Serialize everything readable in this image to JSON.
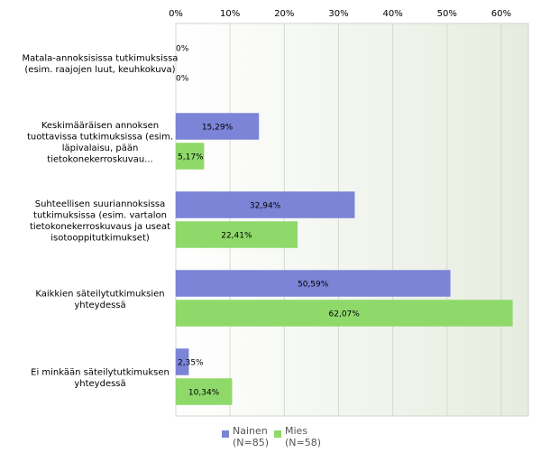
{
  "chart_data": {
    "type": "bar",
    "orientation": "horizontal",
    "categories": [
      [
        "Matala-annoksisissa tutkimuksissa",
        "(esim. raajojen luut, keuhkokuva)"
      ],
      [
        "Keskimääräisen annoksen",
        "tuottavissa tutkimuksissa (esim.",
        "läpivalaisu, pään",
        "tietokonekerroskuvau..."
      ],
      [
        "Suhteellisen suuriannoksissa",
        "tutkimuksissa (esim. vartalon",
        "tietokonekerroskuvaus ja useat",
        "isotooppitutkimukset)"
      ],
      [
        "Kaikkien säteilytutkimuksien",
        "yhteydessä"
      ],
      [
        "Ei minkään säteilytutkimuksen",
        "yhteydessä"
      ]
    ],
    "series": [
      {
        "name": "Nainen",
        "subtitle": "(N=85)",
        "color": "#7b84d6",
        "values": [
          0,
          15.29,
          32.94,
          50.59,
          2.35
        ],
        "labels": [
          "0%",
          "15,29%",
          "32,94%",
          "50,59%",
          "2,35%"
        ]
      },
      {
        "name": "Mies",
        "subtitle": "(N=58)",
        "color": "#8fd96a",
        "values": [
          0,
          5.17,
          22.41,
          62.07,
          10.34
        ],
        "labels": [
          "0%",
          "5,17%",
          "22,41%",
          "62,07%",
          "10,34%"
        ]
      }
    ],
    "xlim": [
      0,
      65
    ],
    "xticks": [
      0,
      10,
      20,
      30,
      40,
      50,
      60
    ],
    "xtick_labels": [
      "0%",
      "10%",
      "20%",
      "30%",
      "40%",
      "50%",
      "60%"
    ],
    "grid": true,
    "legend_position": "bottom"
  }
}
